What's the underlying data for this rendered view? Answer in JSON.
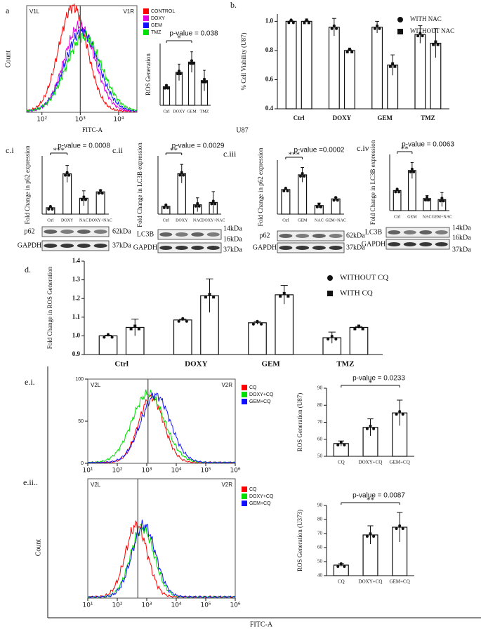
{
  "panel_labels": [
    "a",
    "b.",
    "c.i",
    "c.ii",
    "c.iii",
    "c.iv",
    "d.",
    "e.i.",
    "e.ii.."
  ],
  "caption": "U87",
  "shared_labels": {
    "count": "Count",
    "fitc": "FITC-A"
  },
  "chart_data": [
    {
      "type": "bar",
      "title": "p-value = 0.038",
      "ylabel": "ROS Generation",
      "annotation": "*",
      "categories": [
        "Ctrl",
        "DOXY",
        "GEM",
        "TMZ"
      ],
      "values": [
        0.9,
        1.6,
        2.1,
        1.2
      ],
      "errors": [
        0.1,
        0.4,
        0.5,
        0.5
      ],
      "ylim": [
        0,
        3
      ]
    },
    {
      "type": "bar",
      "ylabel": "% Cell Viability (U87)",
      "categories": [
        "Ctrl",
        "DOXY",
        "GEM",
        "TMZ"
      ],
      "series": [
        {
          "name": "WITH NAC",
          "marker": "circle",
          "values": [
            1.0,
            0.96,
            0.96,
            0.91
          ],
          "errors": [
            0.005,
            0.06,
            0.04,
            0.06
          ]
        },
        {
          "name": "WITHOUT NAC",
          "marker": "square",
          "values": [
            1.0,
            0.8,
            0.7,
            0.85
          ],
          "errors": [
            0.005,
            0.005,
            0.07,
            0.1
          ]
        }
      ],
      "ylim": [
        0.4,
        1.05
      ],
      "yticks": [
        0.4,
        0.6,
        0.8,
        {
          "value": 1,
          "label": "1.0"
        }
      ]
    },
    {
      "type": "bar",
      "title": "p-value = 0.0008",
      "ylabel": "Fold Change in p62 expression",
      "annotation": "***",
      "categories": [
        "Ctrl",
        "DOXY",
        "NAC",
        "DOXY+NAC"
      ],
      "values": [
        0.6,
        3.8,
        1.5,
        2.1
      ],
      "errors": [
        0.05,
        0.8,
        0.7,
        0.2
      ],
      "ylim": [
        0,
        5.5
      ]
    },
    {
      "type": "bar",
      "title": "p-value = 0.0029",
      "ylabel": "Fold Change in LC3B expression",
      "annotation": "**",
      "categories": [
        "Ctrl",
        "DOXY",
        "NAC",
        "DOXY+NAC"
      ],
      "values": [
        1,
        5.2,
        1.2,
        1.5
      ],
      "errors": [
        0.05,
        1.2,
        0.9,
        1.4
      ],
      "ylim": [
        0,
        7.5
      ]
    },
    {
      "type": "bar",
      "title": "p-value =0.0002",
      "ylabel": "Fold Change in p62 expression",
      "annotation": "***",
      "categories": [
        "Ctrl",
        "GEM",
        "NAC",
        "GEM+NAC"
      ],
      "values": [
        1,
        1.6,
        0.35,
        0.62
      ],
      "errors": [
        0.02,
        0.3,
        0.1,
        0.06
      ],
      "ylim": [
        0,
        2.2
      ]
    },
    {
      "type": "bar",
      "title": "p-value = 0.0063",
      "ylabel": "Fold Change in LC3B expression",
      "annotation": "**",
      "categories": [
        "Ctrl",
        "GEM",
        "NAC",
        "GEM+NAC"
      ],
      "values": [
        1,
        2,
        0.6,
        0.55
      ],
      "errors": [
        0.02,
        0.4,
        0.15,
        0.35
      ],
      "ylim": [
        0,
        2.8
      ]
    },
    {
      "type": "bar",
      "ylabel": "Fold Change in ROS Generation",
      "categories": [
        "Ctrl",
        "DOXY",
        "GEM",
        "TMZ"
      ],
      "series": [
        {
          "name": "WITHOUT CQ",
          "marker": "circle",
          "values": [
            1.0,
            1.085,
            1.07,
            0.99
          ],
          "errors": [
            0.003,
            0.005,
            0.008,
            0.03
          ]
        },
        {
          "name": "WITH CQ",
          "marker": "square",
          "values": [
            1.045,
            1.215,
            1.22,
            1.045
          ],
          "errors": [
            0.045,
            0.09,
            0.05,
            0.005
          ]
        }
      ],
      "ylim": [
        0.9,
        1.4
      ],
      "yticks": [
        0.9,
        {
          "value": 1,
          "label": "1.0"
        },
        1.1,
        1.2,
        1.3,
        1.4
      ]
    },
    {
      "type": "bar",
      "title": "p-value = 0.0233",
      "ylabel": "ROS Generation (U87)",
      "annotation": "*",
      "categories": [
        "CQ",
        "DOXY+CQ",
        "GEM+CQ"
      ],
      "values": [
        57.5,
        67,
        75.5
      ],
      "errors": [
        1.5,
        5,
        7.5
      ],
      "ylim": [
        50,
        90
      ],
      "yticks": [
        50,
        60,
        70,
        80,
        90
      ]
    },
    {
      "type": "bar",
      "title": "p-value = 0.0087",
      "ylabel": "ROS Generation (U373)",
      "annotation": "**",
      "categories": [
        "CQ",
        "DOXY+CQ",
        "GEM+CQ"
      ],
      "values": [
        47.5,
        69,
        74.5
      ],
      "errors": [
        1,
        6.5,
        10.5
      ],
      "ylim": [
        40,
        90
      ],
      "yticks": [
        40,
        50,
        60,
        70,
        80,
        90
      ]
    },
    {
      "type": "flow",
      "xlabel": "FITC-A",
      "ylabel": "Count",
      "log_x": true,
      "xlim": [
        40,
        30000
      ],
      "ylim": [
        0,
        100
      ],
      "xticks": [
        {
          "value": 100,
          "label": "10²"
        },
        {
          "value": 1000,
          "label": "10³"
        },
        {
          "value": 10000,
          "label": "10⁴"
        }
      ],
      "gate": 1000,
      "gate_labels": [
        "V1L",
        "V1R"
      ],
      "series": [
        {
          "name": "CONTROL",
          "color": "#ff0000"
        },
        {
          "name": "DOXY",
          "color": "#e000e0"
        },
        {
          "name": "GEM",
          "color": "#1010ff"
        },
        {
          "name": "TMZ",
          "color": "#00e000"
        }
      ]
    },
    {
      "type": "flow",
      "log_x": true,
      "xlim": [
        10,
        1000000
      ],
      "ylim": [
        0,
        100
      ],
      "yticks": [
        0,
        50,
        100
      ],
      "xticks": [
        {
          "value": 10,
          "label": "10¹"
        },
        {
          "value": 100,
          "label": "10²"
        },
        {
          "value": 1000,
          "label": "10³"
        },
        {
          "value": 10000,
          "label": "10⁴"
        },
        {
          "value": 100000,
          "label": "10⁵"
        },
        {
          "value": 1000000,
          "label": "10⁶"
        }
      ],
      "gate": 1100,
      "gate_labels": [
        "V2L",
        "V2R"
      ],
      "series": [
        {
          "name": "CQ",
          "color": "#ff0000"
        },
        {
          "name": "DOXY+CQ",
          "color": "#00dd00"
        },
        {
          "name": "GEM+CQ",
          "color": "#1010ff"
        }
      ]
    },
    {
      "type": "flow",
      "log_x": true,
      "xlim": [
        10,
        1000000
      ],
      "ylim": [
        0,
        100
      ],
      "xticks": [
        {
          "value": 10,
          "label": "10¹"
        },
        {
          "value": 100,
          "label": "10²"
        },
        {
          "value": 1000,
          "label": "10³"
        },
        {
          "value": 10000,
          "label": "10⁴"
        },
        {
          "value": 100000,
          "label": "10⁵"
        },
        {
          "value": 1000000,
          "label": "10⁶"
        }
      ],
      "gate": 500,
      "gate_labels": [
        "V2L",
        "V2R"
      ],
      "series": [
        {
          "name": "CQ",
          "color": "#ff0000"
        },
        {
          "name": "DOXY+CQ",
          "color": "#00dd00"
        },
        {
          "name": "GEM+CQ",
          "color": "#1010ff"
        }
      ]
    }
  ],
  "blots": [
    {
      "rows": [
        {
          "label": "p62",
          "kda": [
            "62kDa"
          ]
        },
        {
          "label": "GAPDH",
          "kda": [
            "37kDa"
          ]
        }
      ]
    },
    {
      "rows": [
        {
          "label": "LC3B",
          "kda": [
            "14kDa",
            "16kDa"
          ]
        },
        {
          "label": "GAPDH",
          "kda": [
            "37kDa"
          ]
        }
      ]
    },
    {
      "rows": [
        {
          "label": "p62",
          "kda": [
            "62kDa"
          ]
        },
        {
          "label": "GAPDH",
          "kda": [
            "37kDa"
          ]
        }
      ]
    },
    {
      "rows": [
        {
          "label": "LC3B",
          "kda": [
            "14kDa",
            "16kDa"
          ]
        },
        {
          "label": "GAPDH",
          "kda": [
            "37kDa"
          ]
        }
      ]
    }
  ]
}
